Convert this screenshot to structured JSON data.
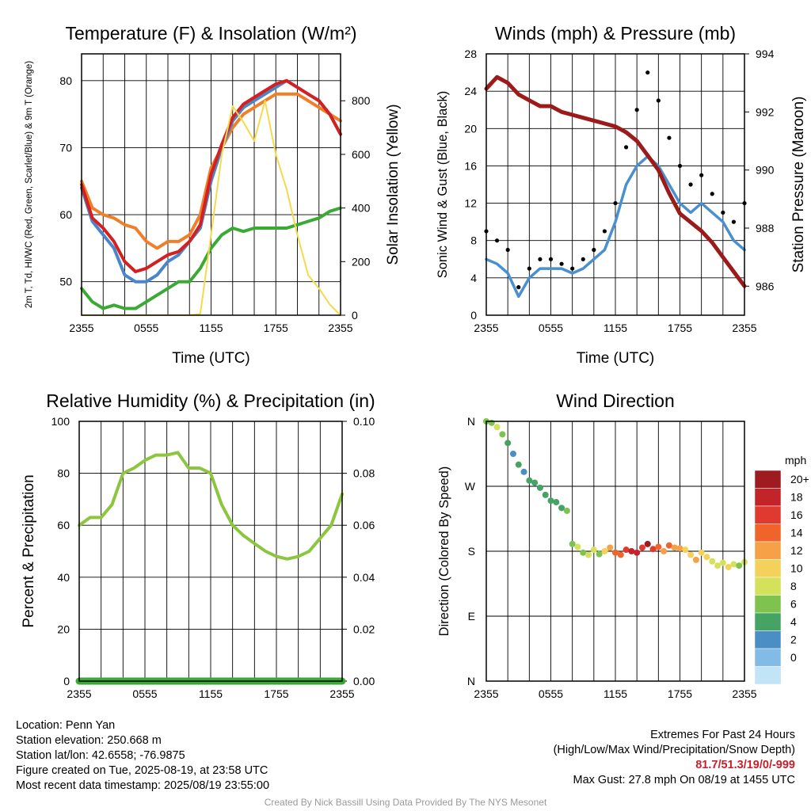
{
  "chart_data": [
    {
      "type": "line",
      "title": "Temperature (F) & Insolation (W/m²)",
      "xlabel": "Time (UTC)",
      "ylabel": "2m T, Td, HI/WC (Red, Green, Scarlet/Blue) & 9m T (Orange)",
      "y2label": "Solar Insolation (Yellow)",
      "x_ticks": [
        "2355",
        "0555",
        "1155",
        "1755",
        "2355"
      ],
      "ylim": [
        45,
        84
      ],
      "y_ticks": [
        50,
        60,
        70,
        80
      ],
      "y2lim": [
        0,
        975
      ],
      "y2_ticks": [
        0,
        200,
        400,
        600,
        800
      ],
      "grid": true,
      "x_hours": [
        0,
        1,
        2,
        3,
        4,
        5,
        6,
        7,
        8,
        9,
        10,
        11,
        12,
        13,
        14,
        15,
        16,
        17,
        18,
        19,
        20,
        21,
        22,
        23,
        24
      ],
      "series": [
        {
          "color": "#f07f2a",
          "axis": "left",
          "values": [
            65,
            61,
            60,
            59.5,
            58.5,
            58,
            56,
            55,
            56,
            56,
            57,
            60,
            67,
            70,
            73,
            75,
            76,
            77,
            78,
            78,
            78,
            77,
            76,
            75,
            74
          ]
        },
        {
          "color": "#4a86c8",
          "axis": "left",
          "values": [
            64,
            59,
            57,
            55,
            51,
            50,
            50,
            51,
            53,
            54,
            56,
            58,
            65,
            70,
            74,
            76,
            77,
            78,
            79,
            80,
            79,
            78,
            77,
            75,
            72
          ]
        },
        {
          "color": "#d42020",
          "axis": "left",
          "values": [
            64.5,
            59.5,
            58,
            56,
            53,
            51.5,
            52,
            53,
            54,
            54.5,
            56,
            58.5,
            66,
            70.5,
            74.5,
            76.5,
            77.5,
            78.5,
            79.5,
            80,
            79,
            78,
            77,
            75,
            72
          ]
        },
        {
          "color": "#3aaa35",
          "axis": "left",
          "values": [
            49,
            47,
            46,
            46.5,
            46,
            46,
            47,
            48,
            49,
            50,
            50,
            52,
            55,
            57,
            58,
            57.5,
            58,
            58,
            58,
            58,
            58.5,
            59,
            59.5,
            60.5,
            61
          ]
        },
        {
          "color": "#f5d94e",
          "axis": "right",
          "values": [
            0,
            0,
            0,
            0,
            0,
            0,
            0,
            0,
            0,
            0,
            0,
            5,
            300,
            600,
            780,
            720,
            650,
            800,
            600,
            470,
            300,
            150,
            100,
            40,
            0
          ]
        }
      ]
    },
    {
      "type": "line",
      "title": "Winds (mph) & Pressure (mb)",
      "xlabel": "Time (UTC)",
      "ylabel": "Sonic Wind & Gust (Blue, Black)",
      "y2label": "Station Pressure (Maroon)",
      "x_ticks": [
        "2355",
        "0555",
        "1155",
        "1755",
        "2355"
      ],
      "ylim": [
        0,
        28
      ],
      "y_ticks": [
        0,
        4,
        8,
        12,
        16,
        20,
        24,
        28
      ],
      "y2lim": [
        985,
        994
      ],
      "y2_ticks": [
        986,
        988,
        990,
        992,
        994
      ],
      "grid": true,
      "x_hours": [
        0,
        1,
        2,
        3,
        4,
        5,
        6,
        7,
        8,
        9,
        10,
        11,
        12,
        13,
        14,
        15,
        16,
        17,
        18,
        19,
        20,
        21,
        22,
        23,
        24
      ],
      "series": [
        {
          "color": "#4a8fd0",
          "axis": "left",
          "values": [
            6,
            5.5,
            4.5,
            2,
            4,
            5,
            5,
            5,
            4.5,
            5,
            6,
            7,
            10,
            14,
            16,
            17,
            16,
            14,
            12,
            11,
            12,
            11,
            10,
            8,
            7
          ]
        },
        {
          "color": "#000000",
          "axis": "left",
          "style": "dots",
          "values": [
            9,
            8,
            7,
            3,
            5,
            6,
            6,
            5.5,
            5,
            6,
            7,
            9,
            12,
            18,
            22,
            26,
            23,
            19,
            16,
            14,
            15,
            13,
            11,
            10,
            12
          ]
        },
        {
          "color": "#9c1a1a",
          "axis": "right",
          "values": [
            992.8,
            993.2,
            993.0,
            992.6,
            992.4,
            992.2,
            992.2,
            992.0,
            991.9,
            991.8,
            991.7,
            991.6,
            991.5,
            991.3,
            991.0,
            990.5,
            990.0,
            989.2,
            988.5,
            988.2,
            987.9,
            987.5,
            987.0,
            986.5,
            986.0
          ]
        }
      ]
    },
    {
      "type": "line",
      "title": "Relative Humidity (%) & Precipitation (in)",
      "ylabel": "Percent & Precipitation",
      "x_ticks": [
        "2355",
        "0555",
        "1155",
        "1755",
        "2355"
      ],
      "ylim": [
        0,
        100
      ],
      "y_ticks": [
        0,
        20,
        40,
        60,
        80,
        100
      ],
      "y2lim": [
        0,
        0.1
      ],
      "y2_ticks": [
        "0.00",
        "0.02",
        "0.04",
        "0.06",
        "0.08",
        "0.10"
      ],
      "grid": true,
      "x_hours": [
        0,
        1,
        2,
        3,
        4,
        5,
        6,
        7,
        8,
        9,
        10,
        11,
        12,
        13,
        14,
        15,
        16,
        17,
        18,
        19,
        20,
        21,
        22,
        23,
        24
      ],
      "series": [
        {
          "color": "#8cc63f",
          "axis": "left",
          "values": [
            60,
            63,
            63,
            68,
            80,
            82,
            85,
            87,
            87,
            88,
            82,
            82,
            80,
            68,
            60,
            56,
            53,
            50,
            48,
            47,
            48,
            50,
            55,
            60,
            72
          ]
        },
        {
          "color": "#3aaa35",
          "axis": "right",
          "values": [
            0,
            0,
            0,
            0,
            0,
            0,
            0,
            0,
            0,
            0,
            0,
            0,
            0,
            0,
            0,
            0,
            0,
            0,
            0,
            0,
            0,
            0,
            0,
            0,
            0
          ]
        }
      ]
    },
    {
      "type": "scatter",
      "title": "Wind Direction",
      "ylabel": "Direction (Colored By Speed)",
      "x_ticks": [
        "2355",
        "0555",
        "1155",
        "1755",
        "2355"
      ],
      "y_ticks": [
        "N",
        "E",
        "S",
        "W",
        "N"
      ],
      "ylim": [
        0,
        360
      ],
      "grid": true,
      "x_hours": [
        0,
        0.5,
        1,
        1.5,
        2,
        2.5,
        3,
        3.5,
        4,
        4.5,
        5,
        5.5,
        6,
        6.5,
        7,
        7.5,
        8,
        8.5,
        9,
        9.5,
        10,
        10.5,
        11,
        11.5,
        12,
        12.5,
        13,
        13.5,
        14,
        14.5,
        15,
        15.5,
        16,
        16.5,
        17,
        17.5,
        18,
        18.5,
        19,
        19.5,
        20,
        20.5,
        21,
        21.5,
        22,
        22.5,
        23,
        23.5,
        24
      ],
      "direction_deg": [
        360,
        358,
        352,
        342,
        330,
        315,
        300,
        290,
        278,
        275,
        268,
        258,
        250,
        248,
        240,
        236,
        190,
        186,
        178,
        175,
        182,
        176,
        180,
        185,
        178,
        175,
        182,
        180,
        178,
        185,
        190,
        183,
        186,
        180,
        188,
        185,
        184,
        182,
        175,
        168,
        178,
        172,
        166,
        160,
        164,
        158,
        162,
        160,
        165
      ],
      "speed_mph": [
        6,
        6,
        7,
        5,
        3,
        2,
        3,
        2,
        3,
        4,
        4,
        3,
        4,
        4,
        4,
        5,
        6,
        7,
        6,
        8,
        7,
        6,
        10,
        12,
        14,
        13,
        16,
        18,
        17,
        15,
        19,
        16,
        14,
        12,
        13,
        11,
        12,
        10,
        9,
        12,
        10,
        9,
        8,
        7,
        8,
        10,
        7,
        6,
        7
      ],
      "legend_title": "mph",
      "legend_labels": [
        "20+",
        "18",
        "16",
        "14",
        "12",
        "10",
        "8",
        "6",
        "4",
        "2",
        "0"
      ],
      "legend_colors": [
        "#9e1c1f",
        "#c2242a",
        "#e03a30",
        "#f0642c",
        "#f6a048",
        "#f3d15a",
        "#d4e15a",
        "#7fc34e",
        "#45a363",
        "#4a8ec6",
        "#83bbe6",
        "#c3e3f6"
      ]
    }
  ],
  "info_left": [
    "Location: Penn Yan",
    "Station elevation: 250.668 m",
    "Station lat/lon: 42.6558; -76.9875",
    "Figure created on Tue, 2025-08-19, at 23:58 UTC",
    "Most recent data timestamp: 2025/08/19 23:55:00"
  ],
  "extremes": {
    "title": "Extremes For Past 24 Hours",
    "subtitle": "(High/Low/Max Wind/Precipitation/Snow Depth)",
    "values": "81.7/51.3/19/0/-999",
    "max_gust": "Max Gust: 27.8 mph On 08/19 at 1455 UTC"
  },
  "credit": "Created By Nick Bassill Using Data Provided By The NYS Mesonet"
}
